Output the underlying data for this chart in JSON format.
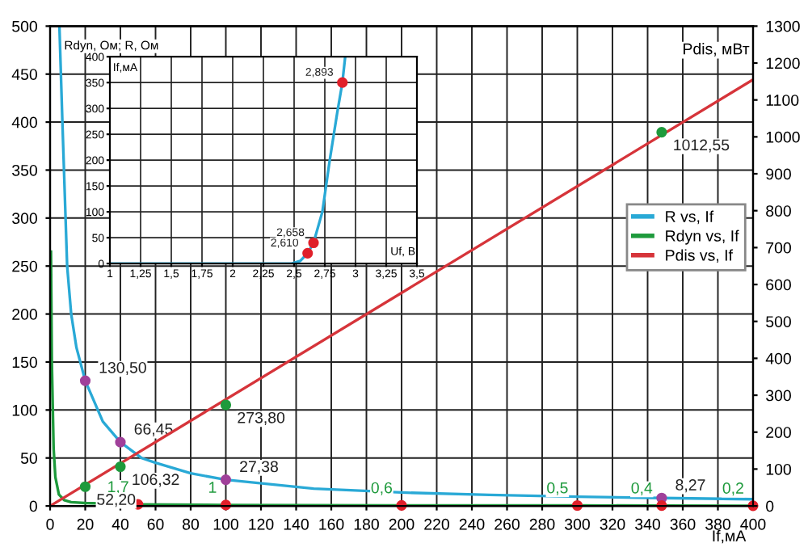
{
  "chart_data": [
    {
      "type": "line",
      "xlabel": "If,мА",
      "ylabel": "Rdyn, Ом; R, Ом",
      "y2label": "Pdis, мВт",
      "xlim": [
        0,
        400
      ],
      "xticks": [
        0,
        20,
        40,
        60,
        80,
        100,
        120,
        140,
        160,
        180,
        200,
        220,
        240,
        260,
        280,
        300,
        320,
        340,
        360,
        380,
        400
      ],
      "ylim": [
        0,
        500
      ],
      "yticks": [
        0,
        50,
        100,
        150,
        200,
        250,
        300,
        350,
        400,
        450,
        500
      ],
      "y2lim": [
        0,
        1300
      ],
      "y2ticks": [
        0,
        100,
        200,
        300,
        400,
        500,
        600,
        700,
        800,
        900,
        1000,
        1100,
        1200,
        1300
      ],
      "grid": true,
      "legend": "right",
      "marker": "none",
      "line_style": "solid",
      "series": [
        {
          "name": "R vs, If",
          "color": "#29a9d6",
          "x": [
            5.3,
            7,
            8.8,
            9.7,
            12,
            15,
            20,
            30,
            40,
            52,
            60,
            80,
            100,
            150,
            200,
            250,
            300,
            348,
            400
          ],
          "values": [
            500,
            400,
            300,
            250,
            200,
            165,
            130.5,
            88,
            66.45,
            50,
            45,
            34,
            27.38,
            18,
            14,
            11.5,
            9.6,
            8.27,
            7
          ]
        },
        {
          "name": "Rdyn vs, If",
          "color": "#1e9a3c",
          "x": [
            0.5,
            1,
            2,
            3,
            5,
            8,
            12,
            20,
            50,
            100,
            200,
            300,
            348,
            400
          ],
          "values": [
            265,
            150,
            60,
            30,
            12,
            6,
            4,
            3,
            1.7,
            1,
            0.6,
            0.5,
            0.4,
            0.2
          ],
          "value_labels": [
            null,
            null,
            null,
            null,
            null,
            null,
            null,
            null,
            "1,7",
            "1",
            "0,6",
            "0,5",
            "0,4",
            "0,2"
          ]
        },
        {
          "name": "Pdis vs, If",
          "axis": "y2",
          "color": "#d6343a",
          "x": [
            0,
            400
          ],
          "values": [
            0,
            1155
          ]
        },
        {
          "type": "scatter",
          "marker": "circle",
          "color": "#a0409a",
          "x": [
            20,
            40,
            100,
            348
          ],
          "values": [
            130.5,
            66.45,
            27.38,
            8.27
          ],
          "value_labels": [
            "130,50",
            "66,45",
            "27,38",
            "8,27"
          ]
        },
        {
          "type": "scatter",
          "marker": "circle",
          "axis": "y2",
          "color": "#1e9a3c",
          "x": [
            20,
            40,
            100,
            348
          ],
          "values": [
            52.2,
            106.32,
            273.8,
            1012.55
          ],
          "value_labels": [
            "52,20",
            "106,32",
            "273,80",
            "1012,55"
          ]
        },
        {
          "type": "scatter",
          "marker": "circle",
          "color": "#e0202a",
          "x": [
            50,
            100,
            200,
            300,
            348,
            400
          ],
          "values": [
            1.7,
            1,
            0.6,
            0.5,
            0.4,
            0.2
          ]
        }
      ]
    },
    {
      "type": "line",
      "xlabel": "Uf, В",
      "annotations": [
        {
          "text": "2,610",
          "x": 2.61,
          "y": 20
        },
        {
          "text": "2,658",
          "x": 2.658,
          "y": 40
        },
        {
          "text": "2,893",
          "x": 2.893,
          "y": 350
        }
      ],
      "ylabel": "If,мА",
      "grid": true,
      "marker": "none",
      "xlim": [
        1,
        3.5
      ],
      "xticks": [
        1,
        {
          "value": 1.25,
          "label": "1,25"
        },
        {
          "value": 1.5,
          "label": "1,5"
        },
        {
          "value": 1.75,
          "label": "1,75"
        },
        2,
        {
          "value": 2.25,
          "label": "2,25"
        },
        {
          "value": 2.5,
          "label": "2,5"
        },
        {
          "value": 2.75,
          "label": "2,75"
        },
        3,
        {
          "value": 3.25,
          "label": "3,25"
        },
        {
          "value": 3.5,
          "label": "3,5"
        }
      ],
      "ylim": [
        0,
        400
      ],
      "yticks": [
        0,
        50,
        100,
        150,
        200,
        250,
        300,
        350,
        400
      ],
      "series": [
        {
          "color": "#29a9d6",
          "x": [
            1,
            2.48,
            2.55,
            2.61,
            2.658,
            2.7,
            2.73,
            2.79,
            2.85,
            2.893,
            2.916
          ],
          "values": [
            0,
            0,
            5,
            20,
            40,
            75,
            100,
            200,
            290,
            350,
            400
          ]
        },
        {
          "type": "scatter",
          "marker": "circle",
          "color": "#e0202a",
          "x": [
            2.61,
            2.658,
            2.893
          ],
          "values": [
            20,
            40,
            350
          ]
        }
      ]
    }
  ]
}
